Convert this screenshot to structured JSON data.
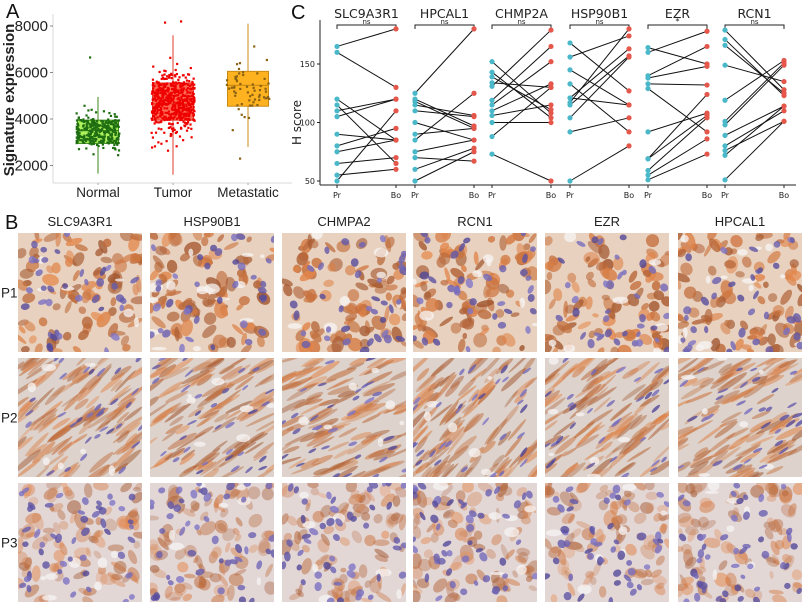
{
  "figure": {
    "panels": {
      "A": {
        "letter": "A"
      },
      "B": {
        "letter": "B"
      },
      "C": {
        "letter": "C"
      }
    }
  },
  "chart_data": [
    {
      "id": "A",
      "type": "box",
      "title": "",
      "xlabel": "",
      "ylabel": "Signature expression",
      "ylim": [
        1300,
        8300
      ],
      "yticks": [
        2000,
        4000,
        6000,
        8000
      ],
      "grid": false,
      "categories": [
        "Normal",
        "Tumor",
        "Metastatic"
      ],
      "series": [
        {
          "name": "Normal",
          "box_color": "#adf25c",
          "point_color": "#1f6e12",
          "edge_color": "#3d8a1a",
          "q1": 2950,
          "median": 3500,
          "q3": 3950,
          "whisker_low": 1650,
          "whisker_high": 4950,
          "outliers": [
            6650
          ],
          "n_points": 320,
          "spread_low": 1650,
          "spread_high": 4950
        },
        {
          "name": "Tumor",
          "box_color": "#ff6a55",
          "point_color": "#ee0000",
          "edge_color": "#e23b2c",
          "q1": 3950,
          "median": 4650,
          "q3": 5550,
          "whisker_low": 1600,
          "whisker_high": 7600,
          "outliers": [
            8150,
            8200
          ],
          "n_points": 560,
          "spread_low": 1600,
          "spread_high": 7600
        },
        {
          "name": "Metastatic",
          "box_color": "#ffb21f",
          "point_color": "#8a6214",
          "edge_color": "#c98a12",
          "q1": 4550,
          "median": 5450,
          "q3": 6050,
          "whisker_low": 2800,
          "whisker_high": 8100,
          "outliers": [
            2300
          ],
          "n_points": 60,
          "spread_low": 2800,
          "spread_high": 8100
        }
      ]
    },
    {
      "id": "C",
      "type": "paired-line",
      "title": "",
      "xlabel": "",
      "ylabel": "H score",
      "ylim": [
        47,
        183
      ],
      "yticks": [
        50,
        100,
        150
      ],
      "grid": false,
      "colors": {
        "Pr": "#4bb8c9",
        "Bo": "#e4574a",
        "line": "#111111"
      },
      "x_labels": [
        "Pr",
        "Bo"
      ],
      "genes": [
        {
          "name": "SLC9A3R1",
          "significance": "ns",
          "pairs": [
            [
              165,
              180
            ],
            [
              160,
              130
            ],
            [
              120,
              85
            ],
            [
              115,
              65
            ],
            [
              110,
              120
            ],
            [
              105,
              120
            ],
            [
              90,
              85
            ],
            [
              80,
              95
            ],
            [
              75,
              85
            ],
            [
              65,
              70
            ],
            [
              55,
              60
            ],
            [
              50,
              110
            ]
          ]
        },
        {
          "name": "HPCAL1",
          "significance": "ns",
          "pairs": [
            [
              125,
              180
            ],
            [
              120,
              97
            ],
            [
              118,
              95
            ],
            [
              115,
              106
            ],
            [
              110,
              105
            ],
            [
              100,
              85
            ],
            [
              90,
              95
            ],
            [
              85,
              125
            ],
            [
              75,
              85
            ],
            [
              70,
              67
            ],
            [
              60,
              78
            ],
            [
              50,
              75
            ]
          ]
        },
        {
          "name": "CHMP2A",
          "significance": "ns",
          "pairs": [
            [
              152,
              108
            ],
            [
              143,
              104
            ],
            [
              139,
              111
            ],
            [
              134,
              130
            ],
            [
              131,
              179
            ],
            [
              119,
              165
            ],
            [
              115,
              152
            ],
            [
              110,
              133
            ],
            [
              106,
              115
            ],
            [
              100,
              100
            ],
            [
              88,
              130
            ],
            [
              73,
              50
            ]
          ]
        },
        {
          "name": "HSP90B1",
          "significance": "ns",
          "pairs": [
            [
              168,
              127
            ],
            [
              156,
              174
            ],
            [
              145,
              115
            ],
            [
              133,
              92
            ],
            [
              121,
              163
            ],
            [
              117,
              180
            ],
            [
              115,
              157
            ],
            [
              104,
              156
            ],
            [
              92,
              104
            ],
            [
              50,
              80
            ],
            [
              121,
              115
            ]
          ]
        },
        {
          "name": "EZR",
          "significance": "*",
          "pairs": [
            [
              164,
              150
            ],
            [
              160,
              178
            ],
            [
              140,
              165
            ],
            [
              138,
              148
            ],
            [
              133,
              132
            ],
            [
              129,
              92
            ],
            [
              92,
              108
            ],
            [
              69,
              124
            ],
            [
              69,
              106
            ],
            [
              59,
              104
            ],
            [
              55,
              86
            ],
            [
              51,
              73
            ]
          ]
        },
        {
          "name": "RCN1",
          "significance": "ns",
          "pairs": [
            [
              179,
              128
            ],
            [
              171,
              123
            ],
            [
              166,
              125
            ],
            [
              149,
              135
            ],
            [
              119,
              153
            ],
            [
              101,
              151
            ],
            [
              98,
              149
            ],
            [
              89,
              114
            ],
            [
              80,
              110
            ],
            [
              76,
              101
            ],
            [
              72,
              114
            ],
            [
              51,
              101
            ]
          ]
        }
      ]
    }
  ],
  "panel_B": {
    "columns": [
      "SLC9A3R1",
      "HSP90B1",
      "CHMPA2",
      "RCN1",
      "EZR",
      "HPCAL1"
    ],
    "rows": [
      "P1",
      "P2",
      "P3"
    ],
    "stain": {
      "brown": "#b07a45",
      "nucleus": "#5a4f93",
      "background_p1": "#e8d2bf",
      "background_p2": "#ddd3cc",
      "background_p3": "#e3d7d6"
    }
  }
}
